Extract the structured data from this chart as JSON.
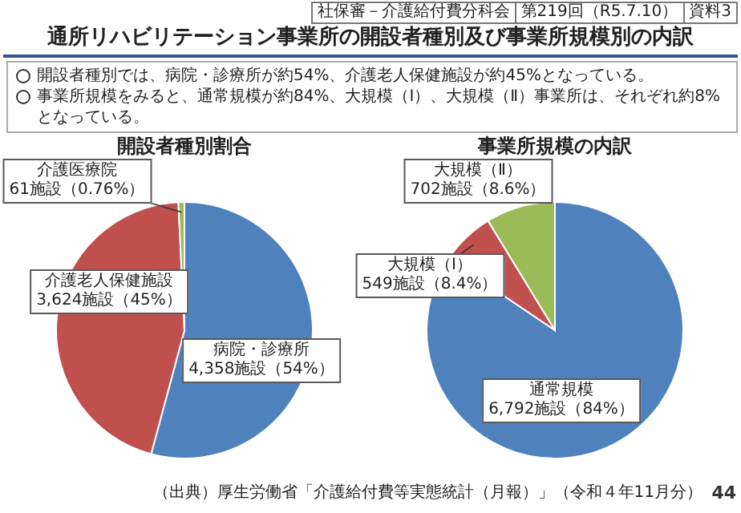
{
  "chart_data": [
    {
      "type": "other",
      "title": "通所リハビリテーション事業所の開設者種別及び事業所規模別の内訳",
      "annotations": [
        "社保審－介護給付費分科会",
        "第219回（R5.7.10）",
        "資料3",
        "開設者種別では、病院・診療所が約54%、介護老人保健施設が約45%となっている。",
        "事業所規模をみると、通常規模が約84%、大規模（Ⅰ）、大規模（Ⅱ）事業所は、それぞれ約8%となっている。",
        "（出典）厚生労働省「介護給付費等実態統計（月報）」（令和４年11月分）",
        "44"
      ]
    },
    {
      "type": "pie",
      "title": "開設者種別割合",
      "categories": [
        "病院・診療所",
        "介護老人保健施設",
        "介護医療院"
      ],
      "values": [
        4358,
        3624,
        61
      ],
      "colors": [
        "#4f81bd",
        "#c0504d",
        "#9bbb59"
      ],
      "value_labels": [
        "4,358施設（54%）",
        "3,624施設（45%）",
        "61施設（0.76%）"
      ]
    },
    {
      "type": "pie",
      "title": "事業所規模の内訳",
      "categories": [
        "通常規模",
        "大規模（Ⅰ）",
        "大規模（Ⅱ）"
      ],
      "values": [
        6792,
        549,
        702
      ],
      "colors": [
        "#4f81bd",
        "#c0504d",
        "#9bbb59"
      ],
      "value_labels": [
        "6,792施設（84%）",
        "549施設（8.4%）",
        "702施設（8.6%）"
      ]
    }
  ]
}
